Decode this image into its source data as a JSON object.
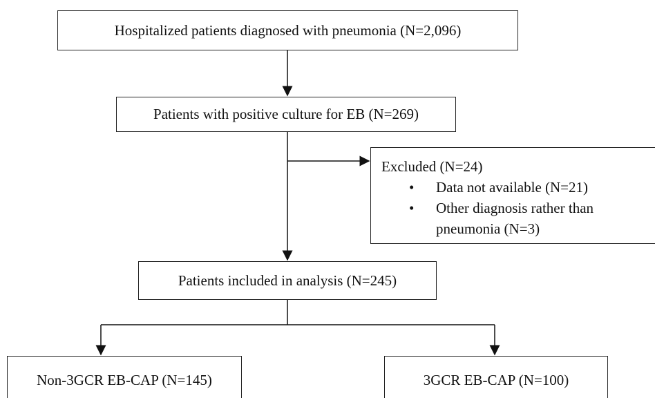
{
  "nodes": [
    {
      "label": "Hospitalized patients diagnosed with pneumonia (N=2,096)"
    },
    {
      "label": "Patients with positive culture for EB (N=269)"
    },
    {
      "label": "Excluded (N=24)",
      "items": [
        "Data not available (N=21)",
        "Other diagnosis rather than pneumonia (N=3)"
      ]
    },
    {
      "label": "Patients included in analysis (N=245)"
    },
    {
      "label": "Non-3GCR EB-CAP (N=145)"
    },
    {
      "label": "3GCR EB-CAP (N=100)"
    }
  ]
}
